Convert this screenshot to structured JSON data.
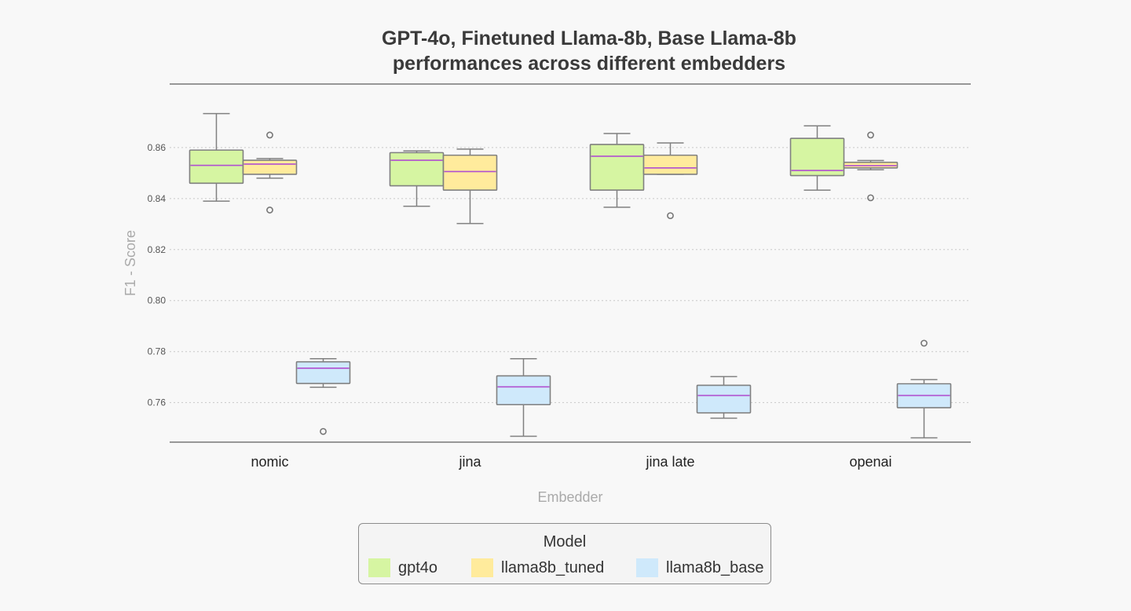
{
  "chart_data": {
    "type": "box",
    "title": [
      "GPT-4o, Finetuned Llama-8b, Base Llama-8b",
      "performances across different embedders"
    ],
    "xlabel": "Embedder",
    "ylabel": "F1 - Score",
    "categories": [
      "nomic",
      "jina",
      "jina late",
      "openai"
    ],
    "yticks": [
      "0.76",
      "0.78",
      "0.80",
      "0.82",
      "0.84",
      "0.86"
    ],
    "ylim": [
      0.7445,
      0.8849
    ],
    "grid": "horizontal-dotted",
    "legend_title": "Model",
    "legend_position": "bottom-center",
    "series": [
      {
        "name": "gpt4o",
        "color": "#d6f5a2",
        "boxes": [
          {
            "whislo": 0.839,
            "q1": 0.846,
            "med": 0.853,
            "q3": 0.859,
            "whishi": 0.8733,
            "fliers": []
          },
          {
            "whislo": 0.837,
            "q1": 0.845,
            "med": 0.855,
            "q3": 0.858,
            "whishi": 0.8587,
            "fliers": []
          },
          {
            "whislo": 0.8366,
            "q1": 0.8433,
            "med": 0.8566,
            "q3": 0.8612,
            "whishi": 0.8655,
            "fliers": []
          },
          {
            "whislo": 0.8433,
            "q1": 0.849,
            "med": 0.851,
            "q3": 0.8636,
            "whishi": 0.8685,
            "fliers": []
          }
        ]
      },
      {
        "name": "llama8b_tuned",
        "color": "#ffeb9c",
        "boxes": [
          {
            "whislo": 0.848,
            "q1": 0.8495,
            "med": 0.8535,
            "q3": 0.855,
            "whishi": 0.8557,
            "fliers": [
              0.8649,
              0.8355
            ]
          },
          {
            "whislo": 0.8302,
            "q1": 0.8433,
            "med": 0.8506,
            "q3": 0.857,
            "whishi": 0.8594,
            "fliers": []
          },
          {
            "whislo": 0.8495,
            "q1": 0.8495,
            "med": 0.852,
            "q3": 0.857,
            "whishi": 0.8618,
            "fliers": [
              0.8333
            ]
          },
          {
            "whislo": 0.8513,
            "q1": 0.852,
            "med": 0.8529,
            "q3": 0.8542,
            "whishi": 0.8549,
            "fliers": [
              0.8649,
              0.8403
            ]
          }
        ]
      },
      {
        "name": "llama8b_base",
        "color": "#cfe9fb",
        "boxes": [
          {
            "whislo": 0.766,
            "q1": 0.7675,
            "med": 0.7735,
            "q3": 0.776,
            "whishi": 0.7772,
            "fliers": [
              0.7487
            ]
          },
          {
            "whislo": 0.7468,
            "q1": 0.7592,
            "med": 0.7662,
            "q3": 0.7705,
            "whishi": 0.7772,
            "fliers": []
          },
          {
            "whislo": 0.7539,
            "q1": 0.756,
            "med": 0.7628,
            "q3": 0.7668,
            "whishi": 0.7702,
            "fliers": []
          },
          {
            "whislo": 0.7462,
            "q1": 0.758,
            "med": 0.7628,
            "q3": 0.7674,
            "whishi": 0.769,
            "fliers": [
              0.7833
            ]
          }
        ]
      }
    ]
  }
}
